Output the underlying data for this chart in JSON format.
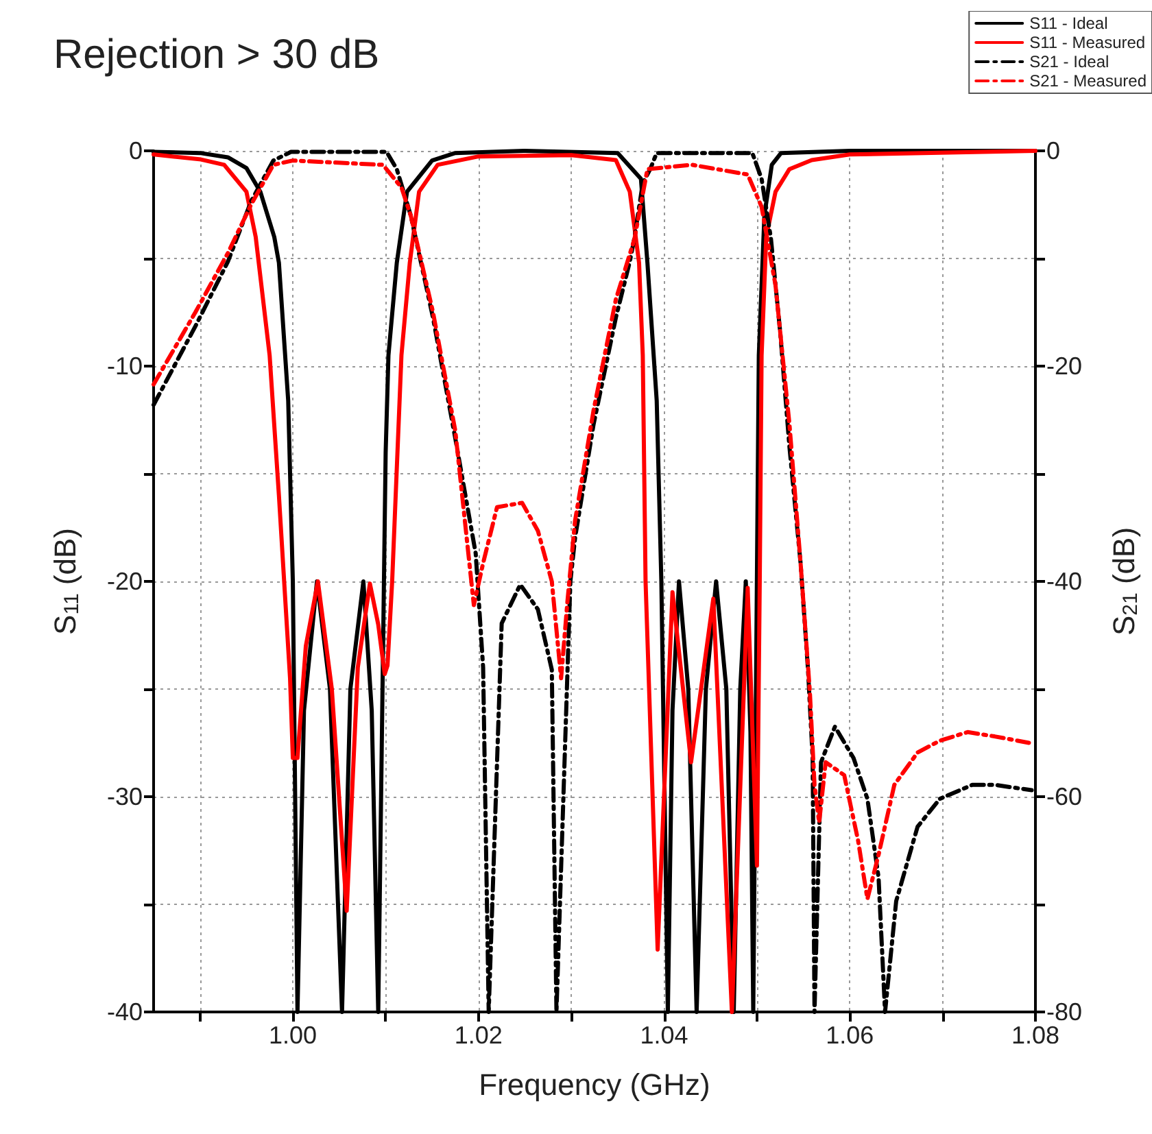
{
  "chart_data": {
    "type": "line",
    "title": "Rejection > 30 dB",
    "xlabel": "Frequency (GHz)",
    "ylabel": "S$_{11}$ (dB)",
    "y2label": "S$_{21}$ (dB)",
    "xlim": [
      0.985,
      1.08
    ],
    "xticks": [
      {
        "value": 0.99,
        "label": null
      },
      {
        "value": 1.0,
        "label": "1.00"
      },
      {
        "value": 1.01,
        "label": null
      },
      {
        "value": 1.02,
        "label": "1.02"
      },
      {
        "value": 1.03,
        "label": null
      },
      {
        "value": 1.04,
        "label": "1.04"
      },
      {
        "value": 1.05,
        "label": null
      },
      {
        "value": 1.06,
        "label": "1.06"
      },
      {
        "value": 1.07,
        "label": null
      },
      {
        "value": 1.08,
        "label": "1.08"
      }
    ],
    "ylim": [
      -40,
      0
    ],
    "yticks": [
      0,
      {
        "value": -5,
        "label": null
      },
      -10,
      {
        "value": -15,
        "label": null
      },
      -20,
      {
        "value": -25,
        "label": null
      },
      -30,
      {
        "value": -35,
        "label": null
      },
      -40
    ],
    "y2lim": [
      -80,
      0
    ],
    "y2ticks": [
      0,
      {
        "value": -10,
        "label": null
      },
      -20,
      {
        "value": -30,
        "label": null
      },
      -40,
      {
        "value": -50,
        "label": null
      },
      -60,
      {
        "value": -70,
        "label": null
      },
      -80
    ],
    "grid": true,
    "legend": "top right",
    "marker": "none",
    "series": [
      {
        "name": "S11 - Ideal",
        "color": "#000000",
        "line_style": "solid",
        "x": [
          0.985,
          0.99,
          0.993,
          0.995,
          0.9965,
          0.998,
          0.9985,
          0.9995,
          1.0,
          1.0005,
          1.0012,
          1.0026,
          1.004,
          1.0053,
          1.0062,
          1.0076,
          1.0085,
          1.0092,
          1.01,
          1.0103,
          1.0112,
          1.0123,
          1.015,
          1.0175,
          1.025,
          1.035,
          1.0375,
          1.0382,
          1.0392,
          1.0397,
          1.0404,
          1.0409,
          1.0416,
          1.0426,
          1.0435,
          1.0445,
          1.0456,
          1.0467,
          1.0475,
          1.0482,
          1.0488,
          1.0493,
          1.0496,
          1.0502,
          1.0508,
          1.0516,
          1.0526,
          1.06,
          1.08
        ],
        "values": [
          -0.05,
          -0.1,
          -0.3,
          -0.8,
          -1.9,
          -4,
          -5.2,
          -11.6,
          -20,
          -40,
          -26,
          -20,
          -25,
          -40,
          -25,
          -20,
          -26,
          -40,
          -14,
          -9.5,
          -5.2,
          -1.9,
          -0.45,
          -0.1,
          0,
          -0.1,
          -1.3,
          -5.2,
          -11.6,
          -20,
          -40,
          -26,
          -20,
          -25,
          -40,
          -25,
          -20,
          -25,
          -40,
          -25,
          -20,
          -27,
          -40,
          -9.5,
          -3,
          -0.65,
          -0.1,
          0,
          0
        ]
      },
      {
        "name": "S11 - Measured",
        "color": "#ff0000",
        "line_style": "solid",
        "x": [
          0.985,
          0.9901,
          0.9926,
          0.995,
          0.996,
          0.9975,
          0.9985,
          0.9997,
          1.0,
          1.0005,
          1.0014,
          1.0027,
          1.0042,
          1.0058,
          1.007,
          1.0083,
          1.0092,
          1.0099,
          1.0102,
          1.0107,
          1.0117,
          1.0126,
          1.0136,
          1.0156,
          1.02,
          1.03,
          1.0348,
          1.0363,
          1.0373,
          1.0377,
          1.038,
          1.0393,
          1.0409,
          1.0429,
          1.0453,
          1.0473,
          1.049,
          1.05,
          1.0503,
          1.0505,
          1.051,
          1.052,
          1.0535,
          1.0559,
          1.06,
          1.08
        ],
        "values": [
          -0.17,
          -0.4,
          -0.65,
          -1.9,
          -4,
          -9.5,
          -16,
          -24.5,
          -28.2,
          -28.2,
          -23,
          -20,
          -25,
          -35.3,
          -24,
          -20.1,
          -22,
          -24.3,
          -23.9,
          -20,
          -9.5,
          -5.2,
          -1.9,
          -0.65,
          -0.26,
          -0.2,
          -0.43,
          -1.9,
          -5.2,
          -9.5,
          -20,
          -37.1,
          -20.5,
          -28.4,
          -20.8,
          -40,
          -20.3,
          -33.2,
          -20,
          -9.5,
          -4,
          -1.9,
          -0.85,
          -0.43,
          -0.17,
          0
        ]
      },
      {
        "name": "S21 - Ideal",
        "color": "#000000",
        "line_style": "dashdot",
        "axis": "y2",
        "x": [
          0.985,
          0.9895,
          0.993,
          0.9955,
          0.9979,
          0.9998,
          1.0101,
          1.0112,
          1.0127,
          1.0151,
          1.0175,
          1.019,
          1.0197,
          1.0205,
          1.0211,
          1.0225,
          1.0245,
          1.0264,
          1.0279,
          1.0284,
          1.0299,
          1.0304,
          1.0324,
          1.0348,
          1.0363,
          1.0368,
          1.0377,
          1.0385,
          1.0392,
          1.0495,
          1.0505,
          1.0515,
          1.0525,
          1.0535,
          1.0547,
          1.0555,
          1.056,
          1.0562,
          1.0569,
          1.0584,
          1.0604,
          1.0619,
          1.0631,
          1.0638,
          1.065,
          1.0673,
          1.0697,
          1.0732,
          1.0756,
          1.0796
        ],
        "values": [
          -23.6,
          -16.3,
          -10.3,
          -4.7,
          -0.9,
          -0.1,
          -0.1,
          -1.7,
          -6,
          -15.5,
          -26.7,
          -34,
          -37.4,
          -48,
          -80,
          -43.9,
          -40.3,
          -42.6,
          -48.2,
          -80,
          -40,
          -36,
          -25.4,
          -15.5,
          -10.3,
          -8.1,
          -3,
          -1.7,
          -0.2,
          -0.2,
          -2.6,
          -8.1,
          -16.8,
          -27.5,
          -38.3,
          -48.2,
          -56.4,
          -80,
          -56.8,
          -53.5,
          -56.4,
          -60.2,
          -67.5,
          -80,
          -69.7,
          -62.8,
          -60.2,
          -58.9,
          -58.9,
          -59.4
        ]
      },
      {
        "name": "S21 - Measured",
        "color": "#ff0000",
        "line_style": "dashdot",
        "axis": "y2",
        "x": [
          0.985,
          0.9895,
          0.993,
          0.9955,
          0.9979,
          1.0,
          1.0097,
          1.0117,
          1.0127,
          1.0151,
          1.0175,
          1.0195,
          1.0205,
          1.022,
          1.0247,
          1.0264,
          1.0279,
          1.0289,
          1.0296,
          1.0304,
          1.0324,
          1.0348,
          1.0368,
          1.0382,
          1.043,
          1.049,
          1.0505,
          1.052,
          1.0535,
          1.0547,
          1.0557,
          1.0562,
          1.0567,
          1.0574,
          1.0594,
          1.0609,
          1.0619,
          1.0631,
          1.0648,
          1.0673,
          1.0697,
          1.0727,
          1.0756,
          1.0793
        ],
        "values": [
          -21.7,
          -15,
          -9.5,
          -5,
          -1.3,
          -0.9,
          -1.3,
          -3.4,
          -6,
          -15,
          -26,
          -42.2,
          -38.3,
          -33.1,
          -32.7,
          -35.3,
          -40,
          -49,
          -41.7,
          -34.4,
          -24.1,
          -13.8,
          -8.2,
          -1.7,
          -1.3,
          -2.2,
          -5.2,
          -12.5,
          -25.4,
          -38.3,
          -50.3,
          -58.9,
          -62.4,
          -56.8,
          -58,
          -64.1,
          -69.5,
          -65.4,
          -58.9,
          -55.9,
          -54.8,
          -54,
          -54.4,
          -55
        ]
      }
    ]
  }
}
